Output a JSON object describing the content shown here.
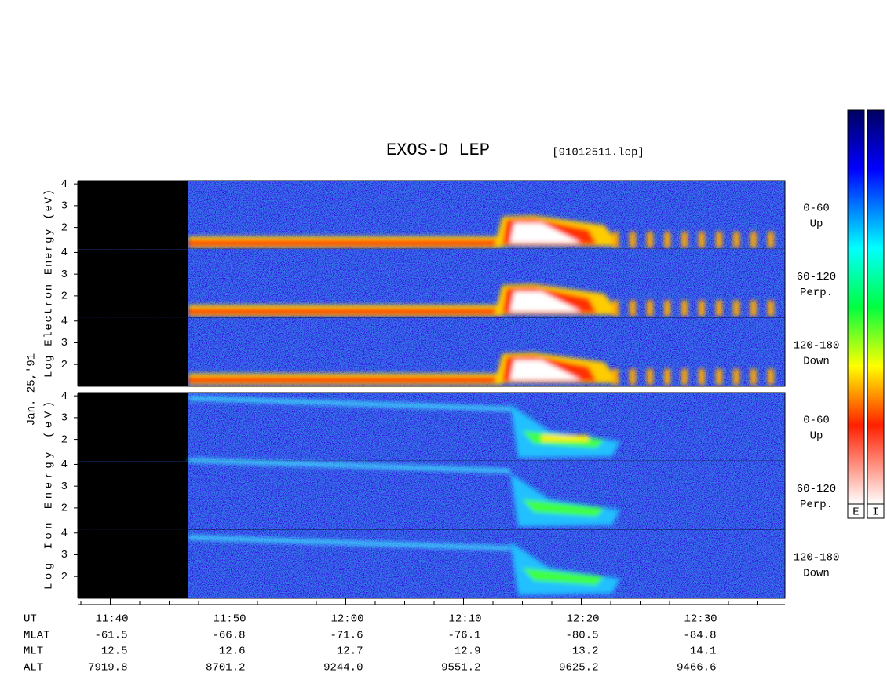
{
  "title": "EXOS-D LEP",
  "file": "[91012511.lep]",
  "date": "Jan. 25,'91",
  "chart_data": [
    {
      "type": "spectrogram",
      "ylabel": "Log Electron Energy (eV)",
      "panels": [
        {
          "label": "0-60",
          "sublabel": "Up"
        },
        {
          "label": "60-120",
          "sublabel": "Perp."
        },
        {
          "label": "120-180",
          "sublabel": "Down"
        }
      ],
      "ylim": [
        1,
        4.15
      ],
      "yticks": [
        2,
        3,
        4
      ]
    },
    {
      "type": "spectrogram",
      "ylabel": "Log Ion Energy (eV)",
      "panels": [
        {
          "label": "0-60",
          "sublabel": "Up"
        },
        {
          "label": "60-120",
          "sublabel": "Perp."
        },
        {
          "label": "120-180",
          "sublabel": "Down"
        }
      ],
      "ylim": [
        1,
        4.15
      ],
      "yticks": [
        2,
        3,
        4
      ]
    }
  ],
  "time_axis": {
    "xlim": [
      697.3,
      757.3
    ],
    "xticks": [
      {
        "value": 700,
        "label": "11:40"
      },
      {
        "value": 710,
        "label": "11:50"
      },
      {
        "value": 720,
        "label": "12:00"
      },
      {
        "value": 730,
        "label": "12:10"
      },
      {
        "value": 740,
        "label": "12:20"
      },
      {
        "value": 750,
        "label": "12:30"
      }
    ],
    "minor_xticks": [
      697.5,
      702.5,
      705,
      707.5,
      712.5,
      715,
      717.5,
      722.5,
      725,
      727.5,
      732.5,
      735,
      737.5,
      742.5,
      745,
      747.5,
      752.5,
      755
    ]
  },
  "table": {
    "row_labels": [
      "UT",
      "MLAT",
      "MLT",
      "ALT"
    ],
    "rows": [
      [
        "-61.5",
        "-66.8",
        "-71.6",
        "-76.1",
        "-80.5",
        "-84.8"
      ],
      [
        "12.5",
        "12.6",
        "12.7",
        "12.9",
        "13.2",
        "14.1"
      ],
      [
        "7919.8",
        "8701.2",
        "9244.0",
        "9551.2",
        "9625.2",
        "9466.6"
      ]
    ]
  },
  "colorbars": [
    {
      "label": "E"
    },
    {
      "label": "I"
    }
  ]
}
